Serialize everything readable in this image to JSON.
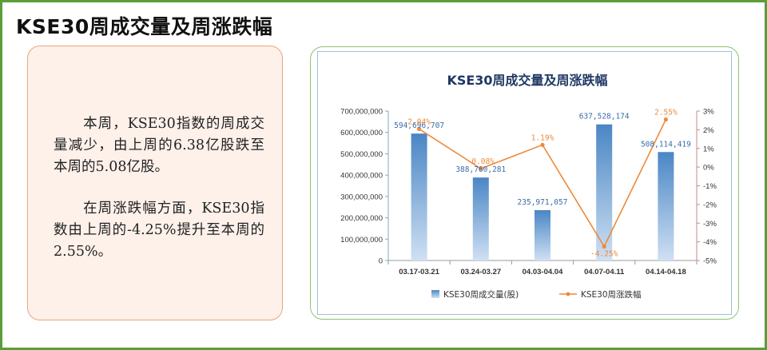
{
  "page": {
    "title": "KSE30周成交量及周涨跌幅"
  },
  "summary": {
    "paragraph1": "　　本周，KSE30指数的周成交量减少，由上周的6.38亿股跌至本周的5.08亿股。",
    "paragraph2": "　　在周涨跌幅方面，KSE30指数由上周的-4.25%提升至本周的2.55%。"
  },
  "colors": {
    "frame_border": "#5a9e3a",
    "bar": "#4a86c5",
    "line": "#ed8a3a",
    "card_bg": "#fdf1ea",
    "card_border": "#e8a57a",
    "chart_card_border": "#8cc46c",
    "title_text": "#1f3864"
  },
  "chart_data": {
    "type": "bar",
    "title": "KSE30周成交量及周涨跌幅",
    "categories": [
      "03.17-03.21",
      "03.24-03.27",
      "04.03-04.04",
      "04.07-04.11",
      "04.14-04.18"
    ],
    "series": [
      {
        "name": "KSE30周成交量(股)",
        "type": "bar",
        "axis": "left",
        "values": [
          594696707,
          388760281,
          235971057,
          637528174,
          508114419
        ],
        "labels": [
          "594,696,707",
          "388,760,281",
          "235,971,057",
          "637,528,174",
          "508,114,419"
        ]
      },
      {
        "name": "KSE30周涨跌幅",
        "type": "line",
        "axis": "right",
        "values": [
          2.04,
          -0.08,
          1.19,
          -4.25,
          2.55
        ],
        "labels": [
          "2.04%",
          "-0.08%",
          "1.19%",
          "-4.25%",
          "2.55%"
        ]
      }
    ],
    "y_left": {
      "ylim": [
        0,
        700000000
      ],
      "ticks": [
        "0",
        "100,000,000",
        "200,000,000",
        "300,000,000",
        "400,000,000",
        "500,000,000",
        "600,000,000",
        "700,000,000"
      ]
    },
    "y_right": {
      "ylim": [
        -5,
        3
      ],
      "ticks": [
        "-5%",
        "-4%",
        "-3%",
        "-2%",
        "-1%",
        "0%",
        "1%",
        "2%",
        "3%"
      ]
    },
    "legend_position": "bottom",
    "grid": false
  }
}
